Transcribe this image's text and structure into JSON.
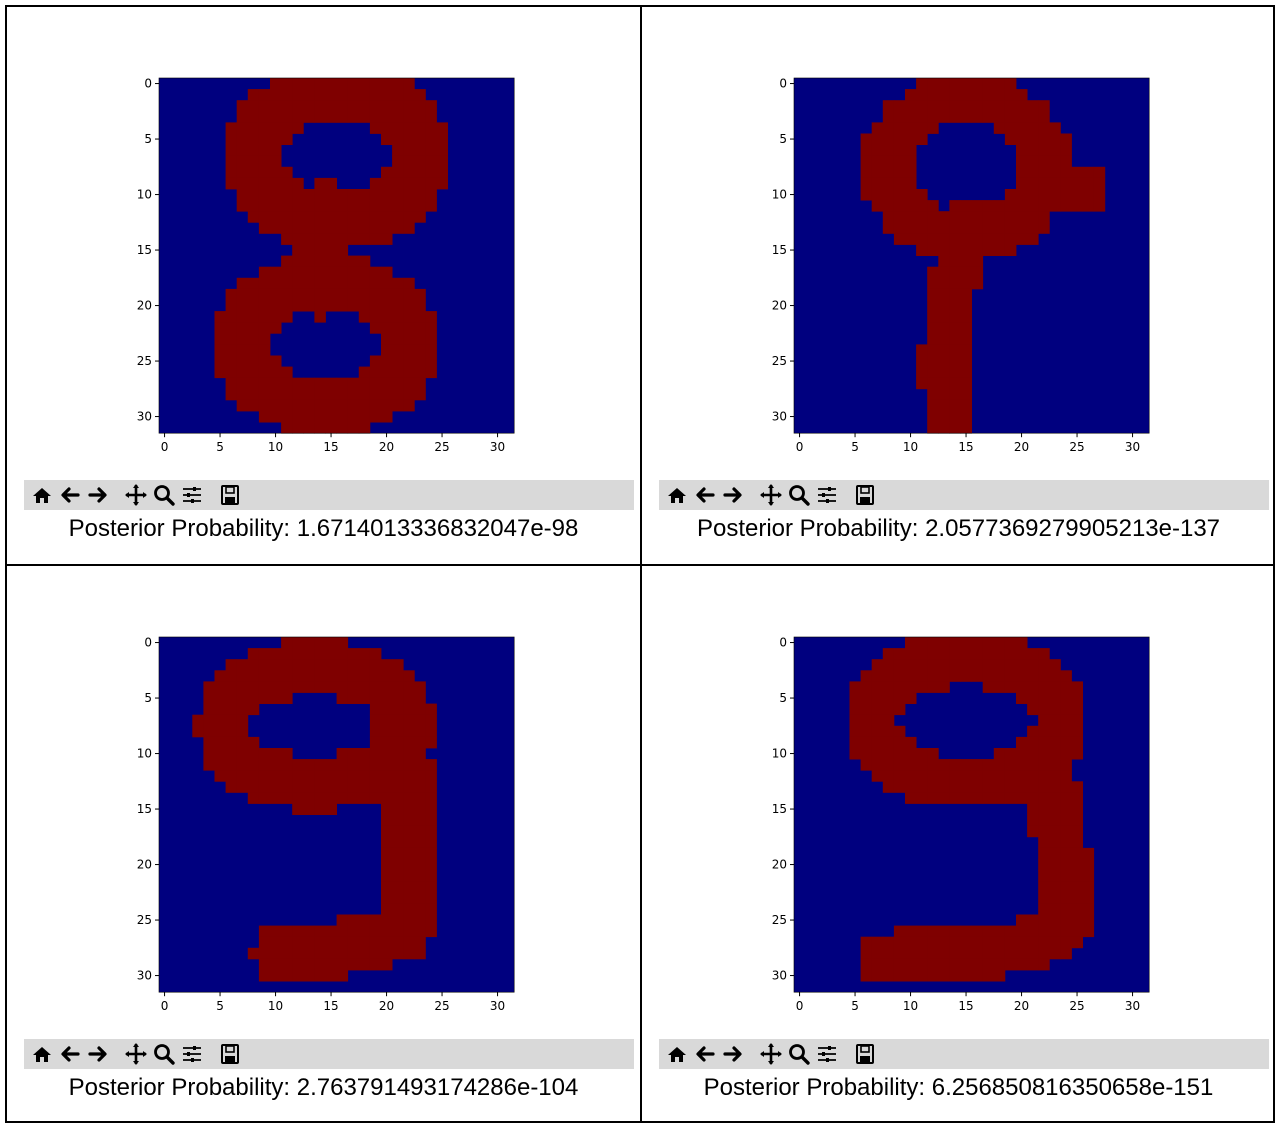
{
  "colors": {
    "background": "#00007f",
    "foreground": "#7f0000",
    "toolbar": "#d9d9d9"
  },
  "axis": {
    "x_ticks": [
      "0",
      "5",
      "10",
      "15",
      "20",
      "25",
      "30"
    ],
    "y_ticks": [
      "0",
      "5",
      "10",
      "15",
      "20",
      "25",
      "30"
    ]
  },
  "toolbar_icons": [
    "home-icon",
    "back-icon",
    "forward-icon",
    "pan-icon",
    "zoom-icon",
    "configure-icon",
    "save-icon"
  ],
  "panels": [
    {
      "digit_shape": "eight",
      "caption": "Posterior Probability: 1.6714013336832047e-98"
    },
    {
      "digit_shape": "nine-thin",
      "caption": "Posterior Probability: 2.0577369279905213e-137"
    },
    {
      "digit_shape": "nine",
      "caption": "Posterior Probability: 2.763791493174286e-104"
    },
    {
      "digit_shape": "nine-wide",
      "caption": "Posterior Probability: 6.256850816350658e-151"
    }
  ]
}
